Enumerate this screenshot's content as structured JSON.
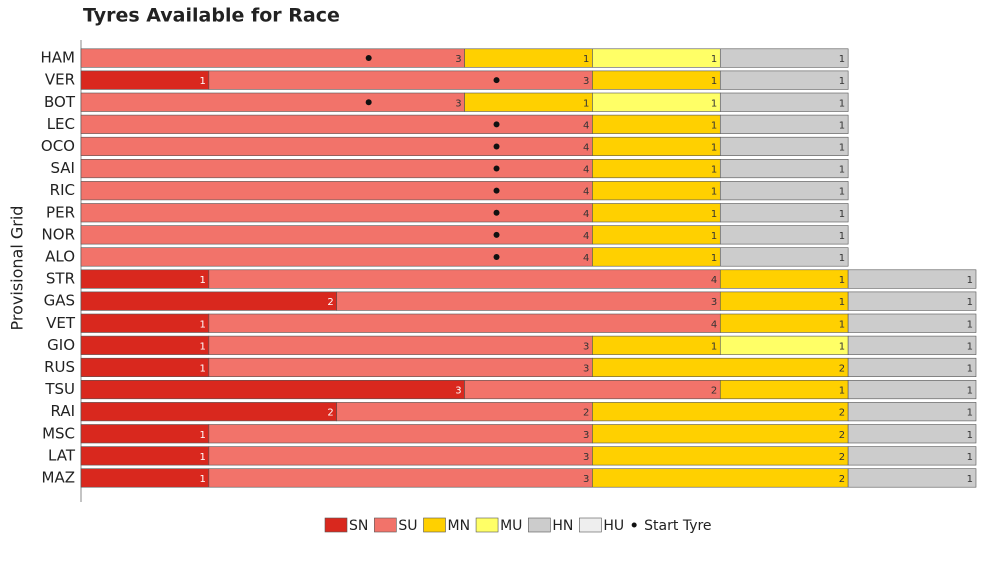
{
  "chart_data": {
    "type": "stacked-bar-horizontal",
    "title": "Tyres Available for Race",
    "y_label": "Provisional Grid",
    "categories": [
      "HAM",
      "VER",
      "BOT",
      "LEC",
      "OCO",
      "SAI",
      "RIC",
      "PER",
      "NOR",
      "ALO",
      "STR",
      "GAS",
      "VET",
      "GIO",
      "RUS",
      "TSU",
      "RAI",
      "MSC",
      "LAT",
      "MAZ"
    ],
    "xlim": [
      0,
      7
    ],
    "series": [
      {
        "name": "SN",
        "color": "#d9281e",
        "values": [
          null,
          1,
          null,
          null,
          null,
          null,
          null,
          null,
          null,
          null,
          1,
          2,
          1,
          1,
          1,
          3,
          2,
          1,
          1,
          1
        ]
      },
      {
        "name": "SU",
        "color": "#f2736a",
        "values": [
          3,
          3,
          3,
          4,
          4,
          4,
          4,
          4,
          4,
          4,
          4,
          3,
          4,
          3,
          3,
          2,
          2,
          3,
          3,
          3
        ]
      },
      {
        "name": "MN",
        "color": "#ffd000",
        "values": [
          1,
          1,
          1,
          1,
          1,
          1,
          1,
          1,
          1,
          1,
          1,
          1,
          1,
          1,
          2,
          1,
          2,
          2,
          2,
          2
        ]
      },
      {
        "name": "MU",
        "color": "#ffff66",
        "values": [
          1,
          null,
          1,
          null,
          null,
          null,
          null,
          null,
          null,
          null,
          null,
          null,
          null,
          1,
          null,
          null,
          null,
          null,
          null,
          null
        ]
      },
      {
        "name": "HN",
        "color": "#cccccc",
        "values": [
          1,
          1,
          1,
          1,
          1,
          1,
          1,
          1,
          1,
          1,
          1,
          1,
          1,
          1,
          1,
          1,
          1,
          1,
          1,
          1
        ]
      },
      {
        "name": "HU",
        "color": "#eeeeee",
        "values": [
          null,
          null,
          null,
          null,
          null,
          null,
          null,
          null,
          null,
          null,
          null,
          null,
          null,
          null,
          null,
          null,
          null,
          null,
          null,
          null
        ]
      }
    ],
    "start_tyre": [
      "SU",
      "SU",
      "SU",
      "SU",
      "SU",
      "SU",
      "SU",
      "SU",
      "SU",
      "SU",
      null,
      null,
      null,
      null,
      null,
      null,
      null,
      null,
      null,
      null
    ],
    "start_tyre_label": "Start Tyre"
  }
}
